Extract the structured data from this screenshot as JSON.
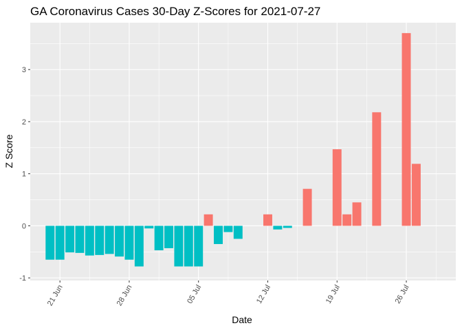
{
  "chart_data": {
    "type": "bar",
    "title": "GA Coronavirus Cases 30-Day Z-Scores for 2021-07-27",
    "xlabel": "Date",
    "ylabel": "Z Score",
    "x_range": [
      "2021-06-18",
      "2021-07-31"
    ],
    "ylim": [
      -1.05,
      3.9
    ],
    "y_ticks": [
      -1,
      0,
      1,
      2,
      3
    ],
    "y_minor_ticks": [
      -0.5,
      0.5,
      1.5,
      2.5,
      3.5
    ],
    "x_ticks": [
      {
        "date": "2021-06-21",
        "label": "21 Jun"
      },
      {
        "date": "2021-06-28",
        "label": "28 Jun"
      },
      {
        "date": "2021-07-05",
        "label": "05 Jul"
      },
      {
        "date": "2021-07-12",
        "label": "12 Jul"
      },
      {
        "date": "2021-07-19",
        "label": "19 Jul"
      },
      {
        "date": "2021-07-26",
        "label": "26 Jul"
      }
    ],
    "x_minor_ticks": [
      "2021-06-24",
      "2021-07-01",
      "2021-07-08",
      "2021-07-15",
      "2021-07-22",
      "2021-07-29"
    ],
    "grid": true,
    "legend": "none",
    "colors": {
      "positive": "#F8766D",
      "negative": "#00BFC4",
      "panel": "#EBEBEB",
      "grid": "#FFFFFF"
    },
    "bars": [
      {
        "date": "2021-06-20",
        "value": -0.65
      },
      {
        "date": "2021-06-21",
        "value": -0.65
      },
      {
        "date": "2021-06-22",
        "value": -0.51
      },
      {
        "date": "2021-06-23",
        "value": -0.52
      },
      {
        "date": "2021-06-24",
        "value": -0.57
      },
      {
        "date": "2021-06-25",
        "value": -0.56
      },
      {
        "date": "2021-06-26",
        "value": -0.54
      },
      {
        "date": "2021-06-27",
        "value": -0.59
      },
      {
        "date": "2021-06-28",
        "value": -0.65
      },
      {
        "date": "2021-06-29",
        "value": -0.78
      },
      {
        "date": "2021-06-30",
        "value": -0.05
      },
      {
        "date": "2021-07-01",
        "value": -0.47
      },
      {
        "date": "2021-07-02",
        "value": -0.43
      },
      {
        "date": "2021-07-03",
        "value": -0.78
      },
      {
        "date": "2021-07-04",
        "value": -0.78
      },
      {
        "date": "2021-07-05",
        "value": -0.78
      },
      {
        "date": "2021-07-06",
        "value": 0.22
      },
      {
        "date": "2021-07-07",
        "value": -0.35
      },
      {
        "date": "2021-07-08",
        "value": -0.12
      },
      {
        "date": "2021-07-09",
        "value": -0.25
      },
      {
        "date": "2021-07-12",
        "value": 0.22
      },
      {
        "date": "2021-07-13",
        "value": -0.07
      },
      {
        "date": "2021-07-14",
        "value": -0.04
      },
      {
        "date": "2021-07-16",
        "value": 0.71
      },
      {
        "date": "2021-07-19",
        "value": 1.47
      },
      {
        "date": "2021-07-20",
        "value": 0.22
      },
      {
        "date": "2021-07-21",
        "value": 0.45
      },
      {
        "date": "2021-07-23",
        "value": 2.18
      },
      {
        "date": "2021-07-26",
        "value": 3.7
      },
      {
        "date": "2021-07-27",
        "value": 1.19
      }
    ]
  }
}
